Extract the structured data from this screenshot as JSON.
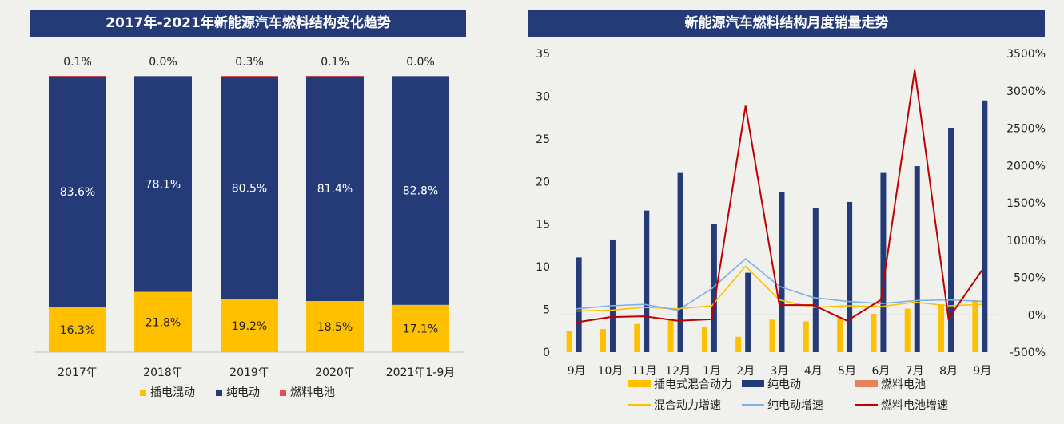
{
  "left": {
    "title": "2017年-2021年新能源汽车燃料结构变化趋势",
    "chart_data": {
      "type": "bar",
      "stacked": true,
      "categories": [
        "2017年",
        "2018年",
        "2019年",
        "2020年",
        "2021年1-9月"
      ],
      "series": [
        {
          "name": "插电混动",
          "color": "#ffc000",
          "values": [
            16.3,
            21.8,
            19.2,
            18.5,
            17.1
          ],
          "labels": [
            "16.3%",
            "21.8%",
            "19.2%",
            "18.5%",
            "17.1%"
          ]
        },
        {
          "name": "纯电动",
          "color": "#243b78",
          "values": [
            83.6,
            78.1,
            80.5,
            81.4,
            82.8
          ],
          "labels": [
            "83.6%",
            "78.1%",
            "80.5%",
            "81.4%",
            "82.8%"
          ]
        },
        {
          "name": "燃料电池",
          "color": "#e05050",
          "values": [
            0.1,
            0.0,
            0.3,
            0.1,
            0.0
          ],
          "labels": [
            "0.1%",
            "0.0%",
            "0.3%",
            "0.1%",
            "0.0%"
          ]
        }
      ],
      "ylim": [
        0,
        100
      ]
    }
  },
  "right": {
    "title": "新能源汽车燃料结构月度销量走势",
    "chart_data": {
      "type": "bar",
      "categories": [
        "9月",
        "10月",
        "11月",
        "12月",
        "1月",
        "2月",
        "3月",
        "4月",
        "5月",
        "6月",
        "7月",
        "8月",
        "9月"
      ],
      "y_left": {
        "ylim": [
          0,
          35
        ],
        "ticks": [
          "0",
          "5",
          "10",
          "15",
          "20",
          "25",
          "30",
          "35"
        ]
      },
      "y_right": {
        "ylim": [
          -500,
          3500
        ],
        "ticks": [
          "-500%",
          "0%",
          "500%",
          "1000%",
          "1500%",
          "2000%",
          "2500%",
          "3000%",
          "3500%"
        ]
      },
      "bar_series": [
        {
          "name": "插电式混合动力",
          "color": "#ffc000",
          "values": [
            2.5,
            2.7,
            3.3,
            3.9,
            3.0,
            1.8,
            3.8,
            3.6,
            4.1,
            4.5,
            5.1,
            5.6,
            6.1
          ]
        },
        {
          "name": "纯电动",
          "color": "#243b78",
          "values": [
            11.1,
            13.2,
            16.6,
            21.0,
            15.0,
            9.3,
            18.8,
            16.9,
            17.6,
            21.0,
            21.8,
            26.3,
            29.5
          ]
        },
        {
          "name": "燃料电池",
          "color": "#e8825a",
          "values": [
            0,
            0,
            0,
            0,
            0,
            0,
            0,
            0,
            0,
            0,
            0,
            0,
            0
          ]
        }
      ],
      "line_series": [
        {
          "name": "混合动力增速",
          "color": "#ffc000",
          "values": [
            50,
            60,
            100,
            80,
            120,
            650,
            200,
            100,
            120,
            110,
            170,
            120,
            140
          ]
        },
        {
          "name": "纯电动增速",
          "color": "#7fb0e8",
          "values": [
            80,
            120,
            140,
            60,
            350,
            750,
            380,
            230,
            180,
            150,
            190,
            200,
            180
          ]
        },
        {
          "name": "燃料电池增速",
          "color": "#c00000",
          "values": [
            -100,
            -30,
            -20,
            -80,
            -60,
            2800,
            130,
            130,
            -80,
            200,
            3280,
            -50,
            600
          ]
        }
      ]
    }
  }
}
